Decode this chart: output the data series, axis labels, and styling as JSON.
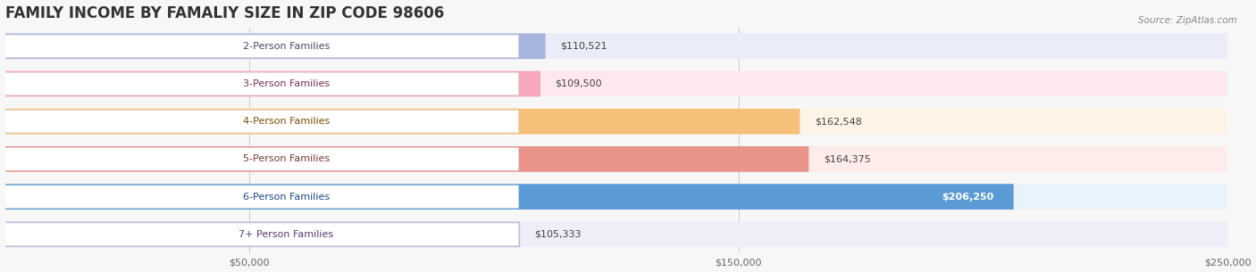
{
  "title": "FAMILY INCOME BY FAMALIY SIZE IN ZIP CODE 98606",
  "source": "Source: ZipAtlas.com",
  "categories": [
    "2-Person Families",
    "3-Person Families",
    "4-Person Families",
    "5-Person Families",
    "6-Person Families",
    "7+ Person Families"
  ],
  "values": [
    110521,
    109500,
    162548,
    164375,
    206250,
    105333
  ],
  "bar_colors": [
    "#a8b4e0",
    "#f5a8bb",
    "#f5c07a",
    "#e8948a",
    "#5b9bd5",
    "#c8b8dc"
  ],
  "bar_bg_colors": [
    "#eaecf7",
    "#fde8f0",
    "#fef4e6",
    "#fdecea",
    "#e8f3fc",
    "#f0ecf8"
  ],
  "label_text_colors": [
    "#4a4a6a",
    "#7a3050",
    "#7a5000",
    "#7a3a30",
    "#1a4a88",
    "#5a3a70"
  ],
  "value_colors_inside": [
    false,
    false,
    false,
    false,
    true,
    false
  ],
  "xlim_min": 0,
  "xlim_max": 250000,
  "xticks": [
    50000,
    150000,
    250000
  ],
  "xtick_labels": [
    "$50,000",
    "$150,000",
    "$250,000"
  ],
  "background_color": "#f7f7f7",
  "plot_bg_color": "#f7f7f7",
  "title_fontsize": 12,
  "label_fontsize": 8,
  "value_fontsize": 8
}
